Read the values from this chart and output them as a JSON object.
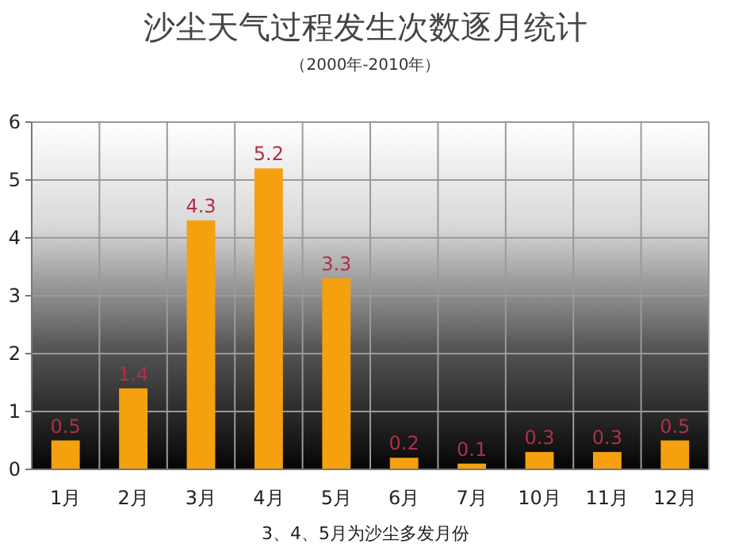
{
  "chart_data": {
    "type": "bar",
    "title": "沙尘天气过程发生次数逐月统计",
    "subtitle": "（2000年-2010年）",
    "categories": [
      "1月",
      "2月",
      "3月",
      "4月",
      "5月",
      "6月",
      "7月",
      "10月",
      "11月",
      "12月"
    ],
    "values": [
      0.5,
      1.4,
      4.3,
      5.2,
      3.3,
      0.2,
      0.1,
      0.3,
      0.3,
      0.5
    ],
    "color": "#f5a00e",
    "ylim": [
      0,
      6
    ],
    "yticks": [
      0,
      1,
      2,
      3,
      4,
      5,
      6
    ],
    "grid": true,
    "data_labels": true,
    "annotations": [
      "3、4、5月为沙尘多发月份"
    ]
  }
}
